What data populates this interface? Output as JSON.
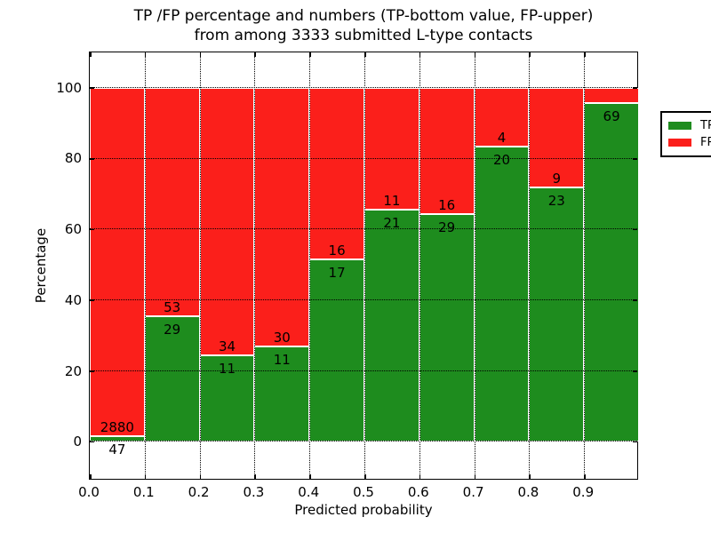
{
  "chart_data": {
    "type": "bar",
    "stacked": true,
    "normalized_to_percent": true,
    "title_line1": "TP /FP percentage and numbers (TP-bottom value, FP-upper)",
    "title_line2": "from among 3333 submitted L-type contacts",
    "total_submitted": 3333,
    "xlabel": "Predicted probability",
    "ylabel": "Percentage",
    "x_tick_labels": [
      "0.0",
      "0.1",
      "0.2",
      "0.3",
      "0.4",
      "0.5",
      "0.6",
      "0.7",
      "0.8",
      "0.9"
    ],
    "y_tick_values": [
      0,
      20,
      40,
      60,
      80,
      100
    ],
    "xlim": [
      0.0,
      1.0
    ],
    "ylim": [
      -10.5,
      110.5
    ],
    "grid": "dotted black, drawn above bars; bars have white edges",
    "legend": {
      "position": "upper right",
      "entries": [
        {
          "label": "TP",
          "color": "#1e8c1e"
        },
        {
          "label": "FP",
          "color": "#fb1f1b"
        }
      ]
    },
    "colors": {
      "tp": "#1e8c1e",
      "fp": "#fb1f1b",
      "bar_edge": "#ffffff"
    },
    "bars": [
      {
        "bin": "0.0-0.1",
        "tp_count": 47,
        "fp_count": 2880,
        "tp_pct": 1.6,
        "tp_label": "47",
        "fp_label": "2880"
      },
      {
        "bin": "0.1-0.2",
        "tp_count": 29,
        "fp_count": 53,
        "tp_pct": 35.4,
        "tp_label": "29",
        "fp_label": "53"
      },
      {
        "bin": "0.2-0.3",
        "tp_count": 11,
        "fp_count": 34,
        "tp_pct": 24.4,
        "tp_label": "11",
        "fp_label": "34"
      },
      {
        "bin": "0.3-0.4",
        "tp_count": 11,
        "fp_count": 30,
        "tp_pct": 26.8,
        "tp_label": "11",
        "fp_label": "30"
      },
      {
        "bin": "0.4-0.5",
        "tp_count": 17,
        "fp_count": 16,
        "tp_pct": 51.5,
        "tp_label": "17",
        "fp_label": "16"
      },
      {
        "bin": "0.5-0.6",
        "tp_count": 21,
        "fp_count": 11,
        "tp_pct": 65.6,
        "tp_label": "21",
        "fp_label": "11"
      },
      {
        "bin": "0.6-0.7",
        "tp_count": 29,
        "fp_count": 16,
        "tp_pct": 64.4,
        "tp_label": "29",
        "fp_label": "16"
      },
      {
        "bin": "0.7-0.8",
        "tp_count": 20,
        "fp_count": 4,
        "tp_pct": 83.3,
        "tp_label": "20",
        "fp_label": "4"
      },
      {
        "bin": "0.8-0.9",
        "tp_count": 23,
        "fp_count": 9,
        "tp_pct": 71.9,
        "tp_label": "23",
        "fp_label": "9"
      },
      {
        "bin": "0.9-1.0",
        "tp_count": 69,
        "fp_count": null,
        "tp_pct": 95.8,
        "tp_label": "69",
        "fp_label": ""
      }
    ]
  }
}
